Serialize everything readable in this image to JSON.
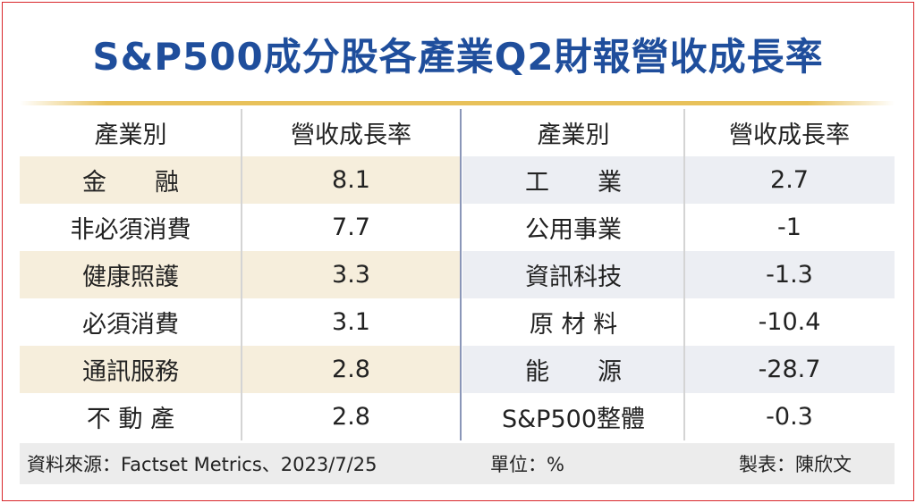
{
  "title": "S&P500成分股各產業Q2財報營收成長率",
  "table": {
    "left": {
      "header": [
        "產業別",
        "營收成長率"
      ],
      "rows": [
        [
          "金　　融",
          8.1
        ],
        [
          "非必須消費",
          7.7
        ],
        [
          "健康照護",
          3.3
        ],
        [
          "必須消費",
          3.1
        ],
        [
          "通訊服務",
          2.8
        ],
        [
          "不 動 產",
          2.8
        ]
      ]
    },
    "right": {
      "header": [
        "產業別",
        "營收成長率"
      ],
      "rows": [
        [
          "工　　業",
          2.7
        ],
        [
          "公用事業",
          -1
        ],
        [
          "資訊科技",
          -1.3
        ],
        [
          "原 材 料",
          -10.4
        ],
        [
          "能　　源",
          -28.7
        ],
        [
          "S&P500整體",
          -0.3
        ]
      ]
    }
  },
  "footer": {
    "source": "資料來源：Factset Metrics、2023/7/25",
    "unit": "單位：%",
    "author": "製表：陳欣文"
  }
}
